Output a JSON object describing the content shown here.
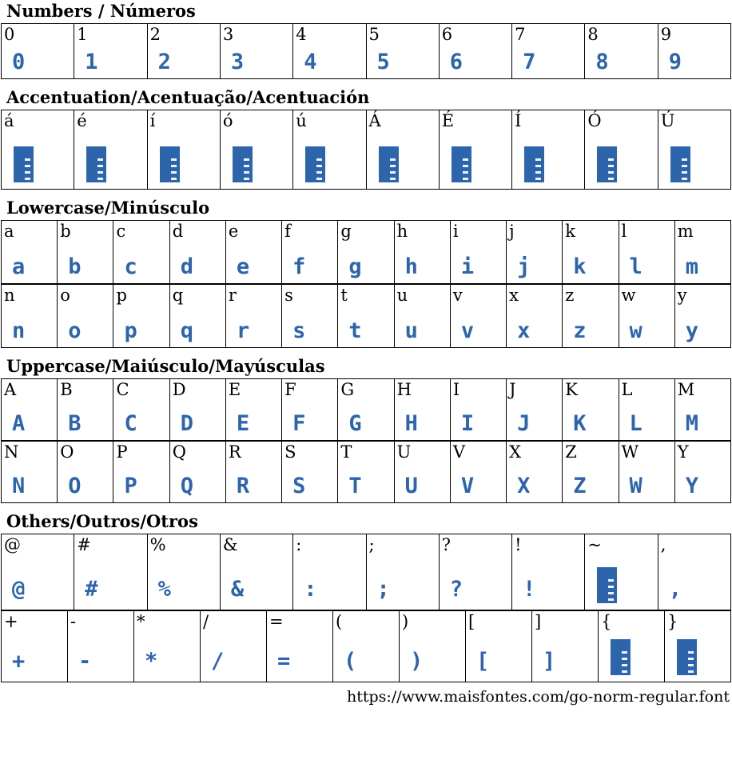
{
  "page": {
    "glyph_color": "#2d65ad",
    "label_color": "#000000",
    "border_color": "#000000",
    "footer_url": "https://www.maisfontes.com/go-norm-regular.font"
  },
  "sections": [
    {
      "id": "numbers",
      "title": "Numbers / Números",
      "rows": [
        [
          {
            "label": "0",
            "glyph": "0"
          },
          {
            "label": "1",
            "glyph": "1"
          },
          {
            "label": "2",
            "glyph": "2"
          },
          {
            "label": "3",
            "glyph": "3"
          },
          {
            "label": "4",
            "glyph": "4"
          },
          {
            "label": "5",
            "glyph": "5"
          },
          {
            "label": "6",
            "glyph": "6"
          },
          {
            "label": "7",
            "glyph": "7"
          },
          {
            "label": "8",
            "glyph": "8"
          },
          {
            "label": "9",
            "glyph": "9"
          }
        ]
      ]
    },
    {
      "id": "accents",
      "title": "Accentuation/Acentuação/Acentuación",
      "rows": [
        [
          {
            "label": "á",
            "missing": true
          },
          {
            "label": "é",
            "missing": true
          },
          {
            "label": "í",
            "missing": true
          },
          {
            "label": "ó",
            "missing": true
          },
          {
            "label": "ú",
            "missing": true
          },
          {
            "label": "Á",
            "missing": true
          },
          {
            "label": "É",
            "missing": true
          },
          {
            "label": "Í",
            "missing": true
          },
          {
            "label": "Ó",
            "missing": true
          },
          {
            "label": "Ú",
            "missing": true
          }
        ]
      ]
    },
    {
      "id": "lowercase",
      "title": "Lowercase/Minúsculo",
      "rows": [
        [
          {
            "label": "a",
            "glyph": "a"
          },
          {
            "label": "b",
            "glyph": "b"
          },
          {
            "label": "c",
            "glyph": "c"
          },
          {
            "label": "d",
            "glyph": "d"
          },
          {
            "label": "e",
            "glyph": "e"
          },
          {
            "label": "f",
            "glyph": "f"
          },
          {
            "label": "g",
            "glyph": "g"
          },
          {
            "label": "h",
            "glyph": "h"
          },
          {
            "label": "i",
            "glyph": "i"
          },
          {
            "label": "j",
            "glyph": "j"
          },
          {
            "label": "k",
            "glyph": "k"
          },
          {
            "label": "l",
            "glyph": "l"
          },
          {
            "label": "m",
            "glyph": "m"
          }
        ],
        [
          {
            "label": "n",
            "glyph": "n"
          },
          {
            "label": "o",
            "glyph": "o"
          },
          {
            "label": "p",
            "glyph": "p"
          },
          {
            "label": "q",
            "glyph": "q"
          },
          {
            "label": "r",
            "glyph": "r"
          },
          {
            "label": "s",
            "glyph": "s"
          },
          {
            "label": "t",
            "glyph": "t"
          },
          {
            "label": "u",
            "glyph": "u"
          },
          {
            "label": "v",
            "glyph": "v"
          },
          {
            "label": "x",
            "glyph": "x"
          },
          {
            "label": "z",
            "glyph": "z"
          },
          {
            "label": "w",
            "glyph": "w"
          },
          {
            "label": "y",
            "glyph": "y"
          }
        ]
      ]
    },
    {
      "id": "uppercase",
      "title": "Uppercase/Maiúsculo/Mayúsculas",
      "rows": [
        [
          {
            "label": "A",
            "glyph": "A"
          },
          {
            "label": "B",
            "glyph": "B"
          },
          {
            "label": "C",
            "glyph": "C"
          },
          {
            "label": "D",
            "glyph": "D"
          },
          {
            "label": "E",
            "glyph": "E"
          },
          {
            "label": "F",
            "glyph": "F"
          },
          {
            "label": "G",
            "glyph": "G"
          },
          {
            "label": "H",
            "glyph": "H"
          },
          {
            "label": "I",
            "glyph": "I"
          },
          {
            "label": "J",
            "glyph": "J"
          },
          {
            "label": "K",
            "glyph": "K"
          },
          {
            "label": "L",
            "glyph": "L"
          },
          {
            "label": "M",
            "glyph": "M"
          }
        ],
        [
          {
            "label": "N",
            "glyph": "N"
          },
          {
            "label": "O",
            "glyph": "O"
          },
          {
            "label": "P",
            "glyph": "P"
          },
          {
            "label": "Q",
            "glyph": "Q"
          },
          {
            "label": "R",
            "glyph": "R"
          },
          {
            "label": "S",
            "glyph": "S"
          },
          {
            "label": "T",
            "glyph": "T"
          },
          {
            "label": "U",
            "glyph": "U"
          },
          {
            "label": "V",
            "glyph": "V"
          },
          {
            "label": "X",
            "glyph": "X"
          },
          {
            "label": "Z",
            "glyph": "Z"
          },
          {
            "label": "W",
            "glyph": "W"
          },
          {
            "label": "Y",
            "glyph": "Y"
          }
        ]
      ]
    },
    {
      "id": "others",
      "title": "Others/Outros/Otros",
      "rows": [
        [
          {
            "label": "@",
            "glyph": "@"
          },
          {
            "label": "#",
            "glyph": "#"
          },
          {
            "label": "%",
            "glyph": "%"
          },
          {
            "label": "&",
            "glyph": "&"
          },
          {
            "label": ":",
            "glyph": ":"
          },
          {
            "label": ";",
            "glyph": ";"
          },
          {
            "label": "?",
            "glyph": "?"
          },
          {
            "label": "!",
            "glyph": "!"
          },
          {
            "label": "~",
            "missing": true
          },
          {
            "label": ",",
            "glyph": ","
          }
        ],
        [
          {
            "label": "+",
            "glyph": "+"
          },
          {
            "label": "-",
            "glyph": "-"
          },
          {
            "label": "*",
            "glyph": "*"
          },
          {
            "label": "/",
            "glyph": "/"
          },
          {
            "label": "=",
            "glyph": "="
          },
          {
            "label": "(",
            "glyph": "("
          },
          {
            "label": ")",
            "glyph": ")"
          },
          {
            "label": "[",
            "glyph": "["
          },
          {
            "label": "]",
            "glyph": "]"
          },
          {
            "label": "{",
            "missing": true
          },
          {
            "label": "}",
            "missing": true
          }
        ]
      ]
    }
  ]
}
